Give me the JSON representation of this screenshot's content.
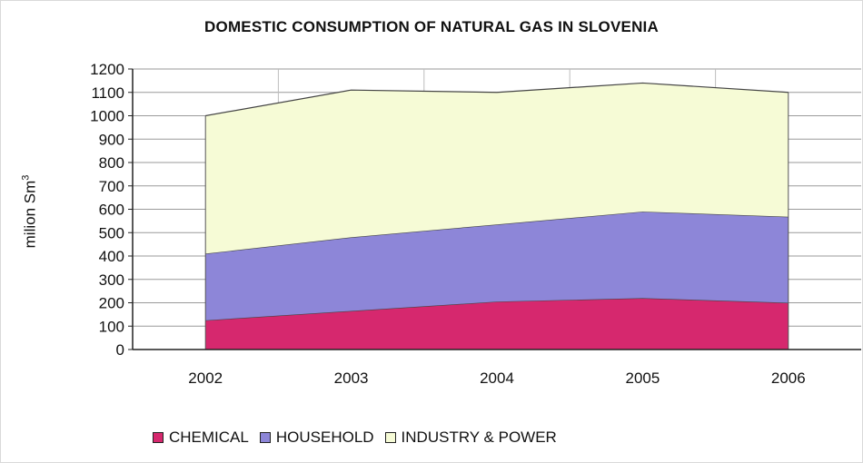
{
  "chart_data": {
    "type": "area",
    "stacked": true,
    "title": "DOMESTIC CONSUMPTION OF NATURAL GAS IN SLOVENIA",
    "xlabel": "",
    "ylabel": "milion Sm",
    "ylabel_superscript": "3",
    "categories": [
      "2002",
      "2003",
      "2004",
      "2005",
      "2006"
    ],
    "ylim": [
      0,
      1200
    ],
    "yticks": [
      0,
      100,
      200,
      300,
      400,
      500,
      600,
      700,
      800,
      900,
      1000,
      1100,
      1200
    ],
    "grid": true,
    "legend_position": "bottom",
    "series": [
      {
        "name": "CHEMICAL",
        "values": [
          125,
          165,
          205,
          220,
          200
        ],
        "color": "#d6286e"
      },
      {
        "name": "HOUSEHOLD",
        "values": [
          285,
          315,
          330,
          370,
          368
        ],
        "color": "#8d86d8"
      },
      {
        "name": "INDUSTRY & POWER",
        "values": [
          590,
          630,
          565,
          550,
          532
        ],
        "color": "#f6fbd6"
      }
    ]
  }
}
